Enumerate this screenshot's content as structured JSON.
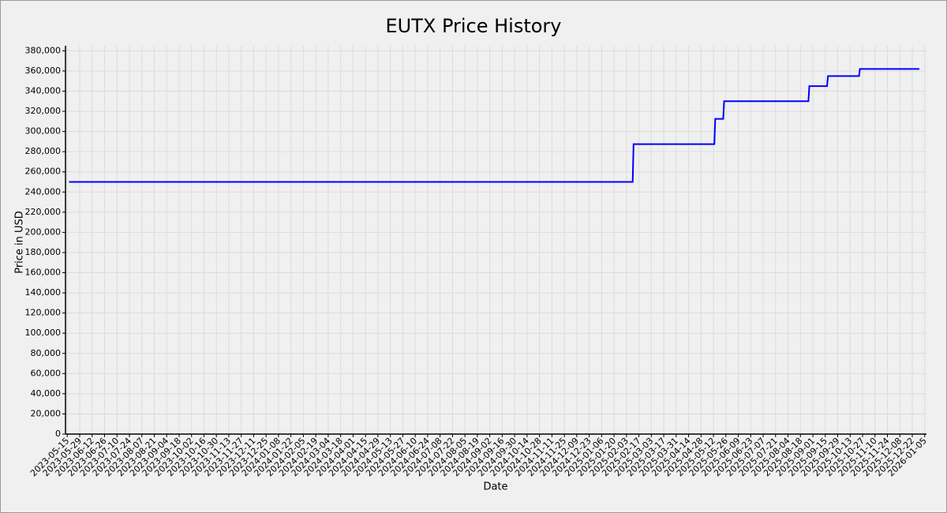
{
  "chart_data": {
    "type": "line",
    "title": "EUTX Price History",
    "x_label": "Date",
    "y_label": "Price in USD",
    "x": [
      "2023-05-17",
      "2025-02-10",
      "2025-02-11",
      "2025-05-13",
      "2025-05-14",
      "2025-05-23",
      "2025-05-24",
      "2025-08-27",
      "2025-08-28",
      "2025-09-17",
      "2025-09-18",
      "2025-10-23",
      "2025-10-24",
      "2025-12-30"
    ],
    "series": [
      {
        "color": "#0000ff",
        "values": [
          250000,
          250000,
          287500,
          287500,
          312500,
          312500,
          330000,
          330000,
          345000,
          345000,
          355000,
          355000,
          362000,
          362000
        ]
      }
    ],
    "xlim": [
      "2023-05-13",
      "2026-01-07"
    ],
    "xticks": [
      "2023-05-15",
      "2023-05-29",
      "2023-06-12",
      "2023-06-26",
      "2023-07-10",
      "2023-07-24",
      "2023-08-07",
      "2023-08-21",
      "2023-09-04",
      "2023-09-18",
      "2023-10-02",
      "2023-10-16",
      "2023-10-30",
      "2023-11-13",
      "2023-11-27",
      "2023-12-11",
      "2023-12-25",
      "2024-01-08",
      "2024-01-22",
      "2024-02-05",
      "2024-02-19",
      "2024-03-04",
      "2024-03-18",
      "2024-04-01",
      "2024-04-15",
      "2024-04-29",
      "2024-05-13",
      "2024-05-27",
      "2024-06-10",
      "2024-06-24",
      "2024-07-08",
      "2024-07-22",
      "2024-08-05",
      "2024-08-19",
      "2024-09-02",
      "2024-09-16",
      "2024-09-30",
      "2024-10-14",
      "2024-10-28",
      "2024-11-11",
      "2024-11-25",
      "2024-12-09",
      "2024-12-23",
      "2025-01-06",
      "2025-01-20",
      "2025-02-03",
      "2025-02-17",
      "2025-03-03",
      "2025-03-17",
      "2025-03-31",
      "2025-04-14",
      "2025-04-28",
      "2025-05-12",
      "2025-05-26",
      "2025-06-09",
      "2025-06-23",
      "2025-07-07",
      "2025-07-21",
      "2025-08-04",
      "2025-08-18",
      "2025-09-01",
      "2025-09-15",
      "2025-09-29",
      "2025-10-13",
      "2025-10-27",
      "2025-11-10",
      "2025-11-24",
      "2025-12-08",
      "2025-12-22",
      "2026-01-05"
    ],
    "ylim": [
      0,
      385000
    ],
    "yticks": [
      0,
      {
        "value": 20000,
        "label": "20,000"
      },
      {
        "value": 40000,
        "label": "40,000"
      },
      {
        "value": 60000,
        "label": "60,000"
      },
      {
        "value": 80000,
        "label": "80,000"
      },
      {
        "value": 100000,
        "label": "100,000"
      },
      {
        "value": 120000,
        "label": "120,000"
      },
      {
        "value": 140000,
        "label": "140,000"
      },
      {
        "value": 160000,
        "label": "160,000"
      },
      {
        "value": 180000,
        "label": "180,000"
      },
      {
        "value": 200000,
        "label": "200,000"
      },
      {
        "value": 220000,
        "label": "220,000"
      },
      {
        "value": 240000,
        "label": "240,000"
      },
      {
        "value": 260000,
        "label": "260,000"
      },
      {
        "value": 280000,
        "label": "280,000"
      },
      {
        "value": 300000,
        "label": "300,000"
      },
      {
        "value": 320000,
        "label": "320,000"
      },
      {
        "value": 340000,
        "label": "340,000"
      },
      {
        "value": 360000,
        "label": "360,000"
      },
      {
        "value": 380000,
        "label": "380,000"
      }
    ],
    "grid": true
  }
}
